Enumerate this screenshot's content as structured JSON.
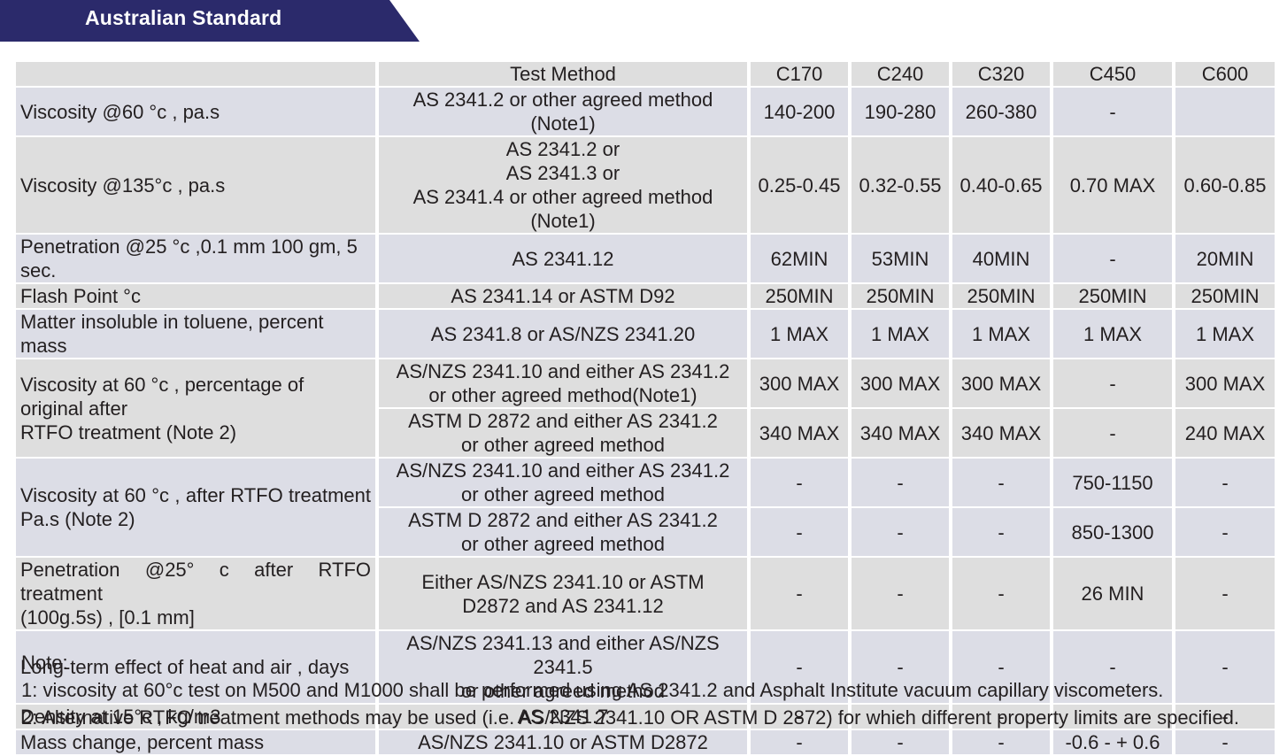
{
  "banner": {
    "title": "Australian Standard"
  },
  "table": {
    "header": {
      "property": "",
      "method": "Test Method",
      "grades": [
        "C170",
        "C240",
        "C320",
        "C450",
        "C600"
      ]
    },
    "rows": [
      {
        "property": "Viscosity   @60  °c , pa.s",
        "method": [
          "AS  2341.2   or other agreed method  (Note1)"
        ],
        "values": [
          "140-200",
          "190-280",
          "260-380",
          "-",
          ""
        ]
      },
      {
        "property": "Viscosity @135°c , pa.s",
        "method": [
          "AS 2341.2 or",
          "AS 2341.3 or",
          "AS  2341.4   or other agreed method  (Note1)"
        ],
        "values": [
          "0.25-0.45",
          "0.32-0.55",
          "0.40-0.65",
          "0.70 MAX",
          "0.60-0.85"
        ]
      },
      {
        "property": "Penetration @25 °c ,0.1 mm 100 gm, 5 sec.",
        "method": [
          "AS 2341.12"
        ],
        "values": [
          "62MIN",
          "53MIN",
          "40MIN",
          "-",
          "20MIN"
        ]
      },
      {
        "property": "Flash Point  °c",
        "method": [
          "AS 2341.14 or ASTM D92"
        ],
        "values": [
          "250MIN",
          "250MIN",
          "250MIN",
          "250MIN",
          "250MIN"
        ]
      },
      {
        "property": "Matter insoluble in toluene, percent mass",
        "method": [
          "AS 2341.8 or AS/NZS 2341.20"
        ],
        "values": [
          "1 MAX",
          "1 MAX",
          "1 MAX",
          "1 MAX",
          "1 MAX"
        ]
      },
      {
        "property": [
          "Viscosity at 60 °c , percentage of original after",
          "RTFO  treatment    (Note  2)"
        ],
        "methods": [
          {
            "method": [
              "AS/NZS 2341.10 and either AS 2341.2",
              "or other agreed method(Note1)"
            ],
            "values": [
              "300 MAX",
              "300 MAX",
              "300 MAX",
              "-",
              "300 MAX"
            ]
          },
          {
            "method": [
              "ASTM D 2872 and either AS 2341.2",
              "or other agreed method"
            ],
            "values": [
              "340 MAX",
              "340 MAX",
              "340 MAX",
              "-",
              "240 MAX"
            ]
          }
        ]
      },
      {
        "property": [
          "Viscosity at   60  °c , after  RTFO  treatment",
          "Pa.s (Note 2)"
        ],
        "methods": [
          {
            "method": [
              "AS/NZS 2341.10 and either AS 2341.2",
              "or other agreed method"
            ],
            "values": [
              "-",
              "-",
              "-",
              "750-1150",
              "-"
            ]
          },
          {
            "method": [
              "ASTM D 2872 and either AS 2341.2",
              "or other agreed method"
            ],
            "values": [
              "-",
              "-",
              "-",
              "850-1300",
              "-"
            ]
          }
        ]
      },
      {
        "property": [
          "Penetration   @25° c after  RTFO  treatment",
          "(100g.5s) , [0.1 mm]"
        ],
        "method": [
          "Either AS/NZS 2341.10 or ASTM",
          "D2872 and AS 2341.12"
        ],
        "values": [
          "-",
          "-",
          "-",
          "26 MIN",
          "-"
        ]
      },
      {
        "property": "Long-term effect of heat and air , days",
        "method": [
          "AS/NZS 2341.13 and either AS/NZS 2341.5",
          "or other agreed method"
        ],
        "values": [
          "-",
          "-",
          "-",
          "-",
          "-"
        ]
      },
      {
        "property": "Density at 15°c , kg/m3",
        "method": [
          "AS 2341.7"
        ],
        "values": [
          "-",
          "-",
          "-",
          "-",
          "-"
        ]
      },
      {
        "property": "Mass change, percent mass",
        "method": [
          "AS/NZS 2341.10 or ASTM D2872"
        ],
        "values": [
          "-",
          "-",
          "-",
          "-0.6 - + 0.6",
          "-"
        ]
      }
    ]
  },
  "notes": {
    "heading": "Note:",
    "items": [
      "1: viscosity at 60°c  test on M500 and M1000 shall be performed using AS 2341.2 and Asphalt Institute vacuum capillary viscometers.",
      "2: Alternative RTFO treatment methods may be used (i.e. AS/NZS 2341.10 OR ASTM D 2872) for which different property limits are specified."
    ]
  },
  "colors": {
    "banner": "#2b2a6b",
    "row_band_a": "#dedede",
    "row_band_b": "#dcdde6",
    "text": "#231f20"
  }
}
